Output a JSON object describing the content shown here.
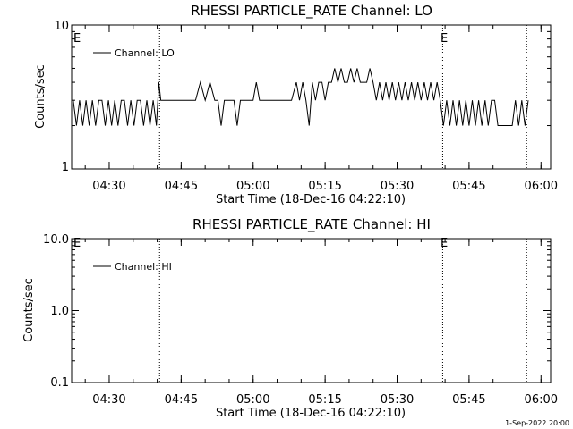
{
  "footer": {
    "timestamp": "1-Sep-2022 20:00"
  },
  "chart_data": [
    {
      "type": "line",
      "title": "RHESSI PARTICLE_RATE Channel: LO",
      "xlabel": "Start Time (18-Dec-16 04:22:10)",
      "ylabel": "Counts/sec",
      "y_scale": "log",
      "ylim": [
        1,
        10
      ],
      "y_ticks": [
        "1",
        "10"
      ],
      "xlim": [
        "04:22:10",
        "06:02:00"
      ],
      "x_ticks": [
        "04:30",
        "04:45",
        "05:00",
        "05:15",
        "05:30",
        "05:45",
        "06:00"
      ],
      "event_lines": [
        "04:40:30",
        "05:39:30",
        "05:57:00"
      ],
      "event_labels": [
        {
          "text": "E",
          "x": "04:22:10"
        },
        {
          "text": "E",
          "x": "05:39:30"
        }
      ],
      "legend": {
        "position": "top-left"
      },
      "series": [
        {
          "name": "Channel: LO",
          "x": [
            "04:22:30",
            "04:23:10",
            "04:23:50",
            "04:24:30",
            "04:25:10",
            "04:25:50",
            "04:26:30",
            "04:27:10",
            "04:27:50",
            "04:28:30",
            "04:29:10",
            "04:29:50",
            "04:30:30",
            "04:31:10",
            "04:31:50",
            "04:32:30",
            "04:33:10",
            "04:33:50",
            "04:34:30",
            "04:35:10",
            "04:35:50",
            "04:36:30",
            "04:37:10",
            "04:37:50",
            "04:38:30",
            "04:39:10",
            "04:39:50",
            "04:40:20",
            "04:40:45",
            "04:42:00",
            "04:45:00",
            "04:48:00",
            "04:49:00",
            "04:50:00",
            "04:51:00",
            "04:52:00",
            "04:52:40",
            "04:53:20",
            "04:54:00",
            "04:55:00",
            "04:56:00",
            "04:56:40",
            "04:57:20",
            "04:58:00",
            "05:00:00",
            "05:00:40",
            "05:01:20",
            "05:02:00",
            "05:05:00",
            "05:08:00",
            "05:09:00",
            "05:09:40",
            "05:10:20",
            "05:11:00",
            "05:11:40",
            "05:12:20",
            "05:13:00",
            "05:13:40",
            "05:14:20",
            "05:15:00",
            "05:15:40",
            "05:16:20",
            "05:17:00",
            "05:17:40",
            "05:18:20",
            "05:19:00",
            "05:19:40",
            "05:20:20",
            "05:21:00",
            "05:21:40",
            "05:22:20",
            "05:23:00",
            "05:23:40",
            "05:24:20",
            "05:25:00",
            "05:25:40",
            "05:26:20",
            "05:27:00",
            "05:27:40",
            "05:28:20",
            "05:29:00",
            "05:29:40",
            "05:30:20",
            "05:31:00",
            "05:31:40",
            "05:32:20",
            "05:33:00",
            "05:33:40",
            "05:34:20",
            "05:35:00",
            "05:35:40",
            "05:36:20",
            "05:37:00",
            "05:37:40",
            "05:38:20",
            "05:39:00",
            "05:39:40",
            "05:40:20",
            "05:41:00",
            "05:41:40",
            "05:42:20",
            "05:43:00",
            "05:43:40",
            "05:44:20",
            "05:45:00",
            "05:45:40",
            "05:46:20",
            "05:47:00",
            "05:47:40",
            "05:48:20",
            "05:49:00",
            "05:49:40",
            "05:50:20",
            "05:51:00",
            "05:52:00",
            "05:53:00",
            "05:54:00",
            "05:54:40",
            "05:55:20",
            "05:56:00",
            "05:56:40",
            "05:57:20"
          ],
          "values": [
            3,
            2,
            3,
            2,
            3,
            2,
            3,
            2,
            3,
            3,
            2,
            3,
            2,
            3,
            2,
            3,
            3,
            2,
            3,
            2,
            3,
            3,
            2,
            3,
            2,
            3,
            2,
            4,
            3,
            3,
            3,
            3,
            4,
            3,
            4,
            3,
            3,
            2,
            3,
            3,
            3,
            2,
            3,
            3,
            3,
            4,
            3,
            3,
            3,
            3,
            4,
            3,
            4,
            3,
            2,
            4,
            3,
            4,
            4,
            3,
            4,
            4,
            5,
            4,
            5,
            4,
            4,
            5,
            4,
            5,
            4,
            4,
            4,
            5,
            4,
            3,
            4,
            3,
            4,
            3,
            4,
            3,
            4,
            3,
            4,
            3,
            4,
            3,
            4,
            3,
            4,
            3,
            4,
            3,
            4,
            3,
            2,
            3,
            2,
            3,
            2,
            3,
            2,
            3,
            2,
            3,
            2,
            3,
            2,
            3,
            2,
            3,
            3,
            2,
            2,
            2,
            2,
            3,
            2,
            3,
            2,
            3
          ]
        }
      ]
    },
    {
      "type": "line",
      "title": "RHESSI PARTICLE_RATE Channel: HI",
      "xlabel": "Start Time (18-Dec-16 04:22:10)",
      "ylabel": "Counts/sec",
      "y_scale": "log",
      "ylim": [
        0.1,
        10
      ],
      "y_ticks": [
        "0.1",
        "1.0",
        "10.0"
      ],
      "xlim": [
        "04:22:10",
        "06:02:00"
      ],
      "x_ticks": [
        "04:30",
        "04:45",
        "05:00",
        "05:15",
        "05:30",
        "05:45",
        "06:00"
      ],
      "event_lines": [
        "04:40:30",
        "05:39:30",
        "05:57:00"
      ],
      "event_labels": [
        {
          "text": "E",
          "x": "04:22:10"
        },
        {
          "text": "E",
          "x": "05:39:30"
        }
      ],
      "legend": {
        "position": "top-left"
      },
      "series": [
        {
          "name": "Channel: HI",
          "x": [],
          "values": []
        }
      ]
    }
  ]
}
